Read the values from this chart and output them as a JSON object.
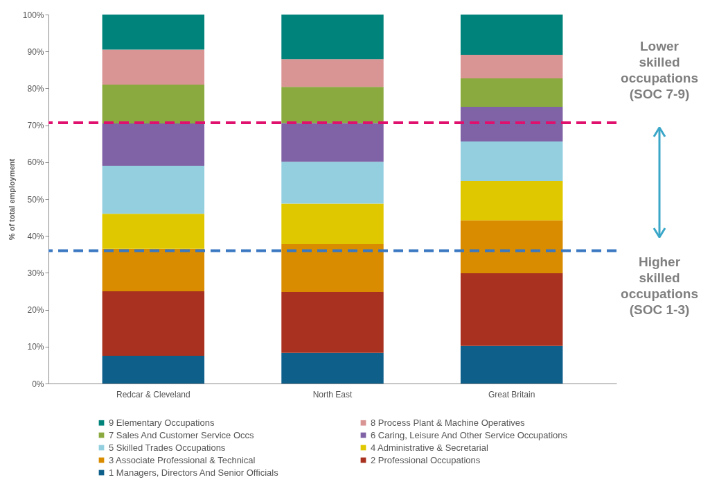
{
  "chart_data": {
    "type": "bar",
    "stacked": true,
    "ylabel": "% of total employment",
    "categories": [
      "Redcar & Cleveland",
      "North East",
      "Great Britain"
    ],
    "series": [
      {
        "name": "1 Managers, Directors And Senior Officials",
        "color": "#0e5f8a",
        "values": [
          7.5,
          8.3,
          10.2
        ]
      },
      {
        "name": "2 Professional Occupations",
        "color": "#a8321f",
        "values": [
          17.5,
          16.5,
          19.7
        ]
      },
      {
        "name": "3 Associate Professional & Technical",
        "color": "#d98c00",
        "values": [
          11.5,
          13,
          14.3
        ]
      },
      {
        "name": "4 Administrative & Secretarial",
        "color": "#e0c800",
        "values": [
          9.5,
          11,
          10.7
        ]
      },
      {
        "name": "5 Skilled Trades Occupations",
        "color": "#94cfe0",
        "values": [
          13,
          11.3,
          10.7
        ]
      },
      {
        "name": "6 Caring, Leisure And Other Service Occupations",
        "color": "#8063a6",
        "values": [
          11.5,
          10.5,
          9.4
        ]
      },
      {
        "name": "7 Sales And Customer Service Occs",
        "color": "#8aaa40",
        "values": [
          10.5,
          9.8,
          7.7
        ]
      },
      {
        "name": "8 Process Plant & Machine Operatives",
        "color": "#d99494",
        "values": [
          9.5,
          7.5,
          6.4
        ]
      },
      {
        "name": "9 Elementary Occupations",
        "color": "#00837a",
        "values": [
          9.5,
          12.1,
          10.9
        ]
      }
    ],
    "ylim": [
      0,
      100
    ],
    "yticks": [
      {
        "value": 0,
        "label": "0%"
      },
      {
        "value": 10,
        "label": "10%"
      },
      {
        "value": 20,
        "label": "20%"
      },
      {
        "value": 30,
        "label": "30%"
      },
      {
        "value": 40,
        "label": "40%"
      },
      {
        "value": 50,
        "label": "50%"
      },
      {
        "value": 60,
        "label": "60%"
      },
      {
        "value": 70,
        "label": "70%"
      },
      {
        "value": 80,
        "label": "80%"
      },
      {
        "value": 90,
        "label": "90%"
      },
      {
        "value": 100,
        "label": "100%"
      }
    ],
    "ref_lines": [
      {
        "axis": "y",
        "value": 70.7,
        "color": "#e0106e",
        "line_style": "dashed"
      },
      {
        "axis": "y",
        "value": 36,
        "color": "#3a78c2",
        "line_style": "dashed"
      }
    ],
    "annotations": [
      "Lower skilled occupations (SOC 7-9)",
      "Higher skilled occupations (SOC 1-3)"
    ],
    "legend": "bottom",
    "grid": false
  }
}
